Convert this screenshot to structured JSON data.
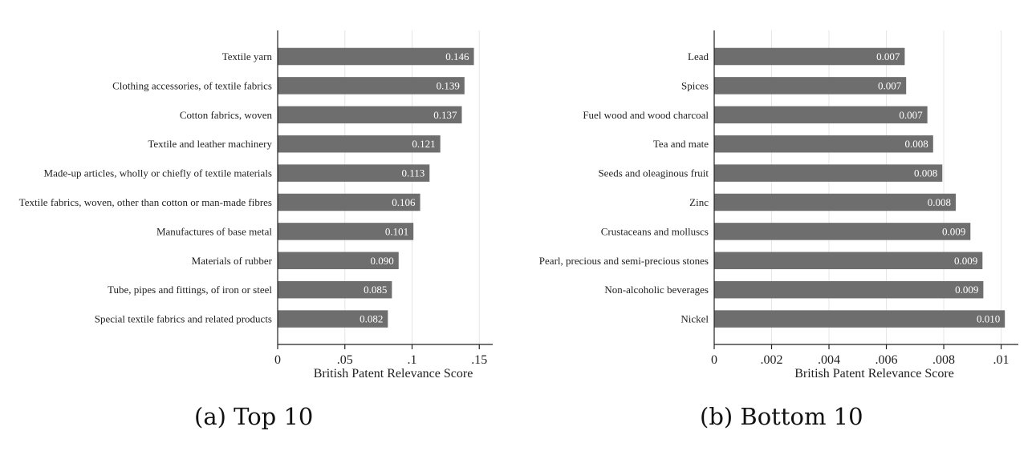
{
  "chart_data": [
    {
      "type": "bar",
      "orientation": "horizontal",
      "caption": "(a) Top 10",
      "xlabel": "British Patent Relevance Score",
      "xlim": [
        0,
        0.16
      ],
      "xticks": [
        0,
        0.05,
        0.1,
        0.15
      ],
      "xtick_labels": [
        "0",
        ".05",
        ".1",
        ".15"
      ],
      "grid": "vertical",
      "bar_color": "#6e6e6e",
      "categories": [
        "Textile yarn",
        "Clothing accessories, of textile fabrics",
        "Cotton fabrics, woven",
        "Textile and leather machinery",
        "Made-up articles, wholly or chiefly of textile materials",
        "Textile fabrics, woven, other than cotton or man-made fibres",
        "Manufactures of base metal",
        "Materials of rubber",
        "Tube, pipes and fittings, of iron or steel",
        "Special textile fabrics and related products"
      ],
      "values": [
        0.146,
        0.139,
        0.137,
        0.121,
        0.113,
        0.106,
        0.101,
        0.09,
        0.085,
        0.082
      ],
      "value_labels": [
        "0.146",
        "0.139",
        "0.137",
        "0.121",
        "0.113",
        "0.106",
        "0.101",
        "0.090",
        "0.085",
        "0.082"
      ]
    },
    {
      "type": "bar",
      "orientation": "horizontal",
      "caption": "(b) Bottom 10",
      "xlabel": "British Patent Relevance Score",
      "xlim": [
        0,
        0.0106
      ],
      "xticks": [
        0,
        0.002,
        0.004,
        0.006,
        0.008,
        0.01
      ],
      "xtick_labels": [
        "0",
        ".002",
        ".004",
        ".006",
        ".008",
        ".01"
      ],
      "grid": "vertical",
      "bar_color": "#6e6e6e",
      "categories": [
        "Lead",
        "Spices",
        "Fuel wood and wood charcoal",
        "Tea and mate",
        "Seeds and oleaginous fruit",
        "Zinc",
        "Crustaceans and molluscs",
        "Pearl, precious and semi-precious stones",
        "Non-alcoholic beverages",
        "Nickel"
      ],
      "values": [
        0.00664,
        0.00669,
        0.00743,
        0.00763,
        0.00795,
        0.00842,
        0.00893,
        0.00935,
        0.00938,
        0.01013
      ],
      "value_labels": [
        "0.007",
        "0.007",
        "0.007",
        "0.008",
        "0.008",
        "0.008",
        "0.009",
        "0.009",
        "0.009",
        "0.010"
      ]
    }
  ]
}
